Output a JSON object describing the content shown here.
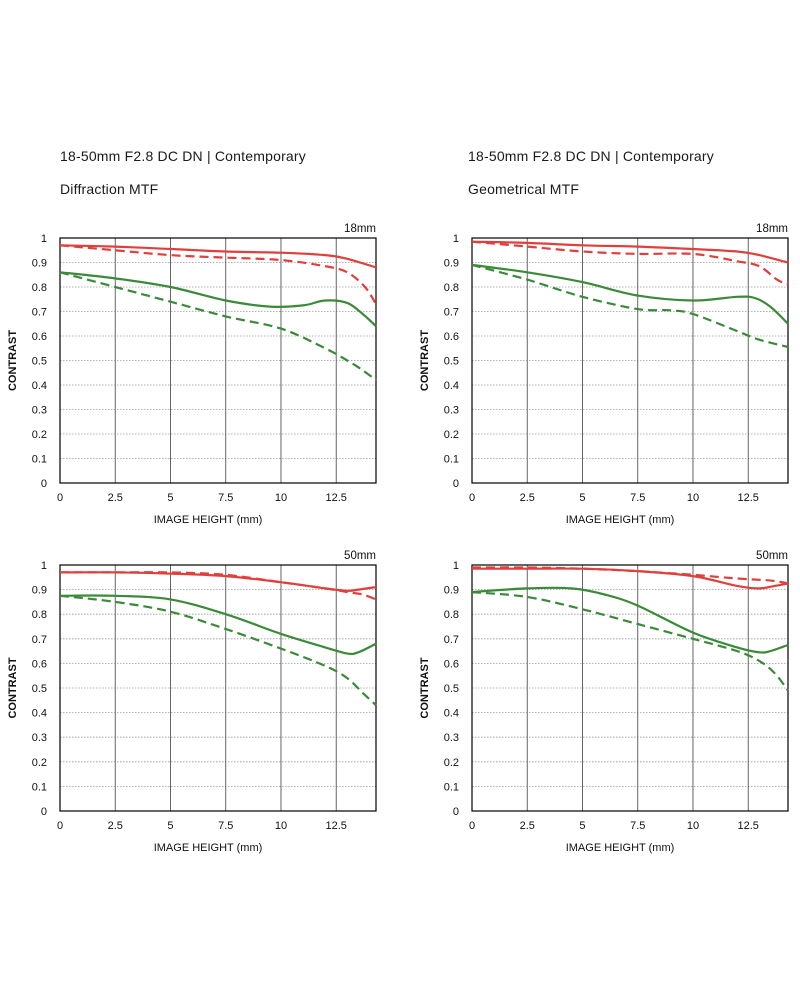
{
  "left_header": {
    "title": "18-50mm F2.8 DC DN | Contemporary",
    "subtitle": "Diffraction MTF"
  },
  "right_header": {
    "title": "18-50mm F2.8 DC DN | Contemporary",
    "subtitle": "Geometrical MTF"
  },
  "colors": {
    "red": "#e0403c",
    "green": "#3a8a3a",
    "grid": "#9a9a9a",
    "axis": "#000000"
  },
  "chart_data": [
    {
      "type": "line",
      "focal_label": "18mm",
      "xlabel": "IMAGE HEIGHT (mm)",
      "ylabel": "CONTRAST",
      "xlim": [
        0,
        14.3
      ],
      "ylim": [
        0,
        1
      ],
      "xticks": [
        "0",
        "2.5",
        "5",
        "7.5",
        "10",
        "12.5"
      ],
      "yticks": [
        "0",
        "0.1",
        "0.2",
        "0.3",
        "0.4",
        "0.5",
        "0.6",
        "0.7",
        "0.8",
        "0.9",
        "1"
      ],
      "series": [
        {
          "color": "red",
          "dash": false,
          "points": [
            [
              0,
              0.97
            ],
            [
              2.5,
              0.965
            ],
            [
              5,
              0.955
            ],
            [
              7.5,
              0.945
            ],
            [
              10,
              0.94
            ],
            [
              12,
              0.93
            ],
            [
              13,
              0.915
            ],
            [
              14.3,
              0.88
            ]
          ]
        },
        {
          "color": "red",
          "dash": true,
          "points": [
            [
              0,
              0.97
            ],
            [
              2.5,
              0.95
            ],
            [
              5,
              0.93
            ],
            [
              7.5,
              0.92
            ],
            [
              10,
              0.91
            ],
            [
              12,
              0.885
            ],
            [
              13,
              0.86
            ],
            [
              13.8,
              0.8
            ],
            [
              14.3,
              0.73
            ]
          ]
        },
        {
          "color": "green",
          "dash": false,
          "points": [
            [
              0,
              0.86
            ],
            [
              2.5,
              0.835
            ],
            [
              5,
              0.8
            ],
            [
              7.5,
              0.745
            ],
            [
              9.5,
              0.72
            ],
            [
              11,
              0.725
            ],
            [
              12,
              0.745
            ],
            [
              13,
              0.735
            ],
            [
              13.7,
              0.69
            ],
            [
              14.3,
              0.64
            ]
          ]
        },
        {
          "color": "green",
          "dash": true,
          "points": [
            [
              0,
              0.86
            ],
            [
              2.5,
              0.8
            ],
            [
              5,
              0.74
            ],
            [
              7.5,
              0.68
            ],
            [
              10,
              0.63
            ],
            [
              12,
              0.55
            ],
            [
              13,
              0.5
            ],
            [
              13.7,
              0.46
            ],
            [
              14.3,
              0.42
            ]
          ]
        }
      ]
    },
    {
      "type": "line",
      "focal_label": "18mm",
      "xlabel": "IMAGE HEIGHT (mm)",
      "ylabel": "CONTRAST",
      "xlim": [
        0,
        14.3
      ],
      "ylim": [
        0,
        1
      ],
      "xticks": [
        "0",
        "2.5",
        "5",
        "7.5",
        "10",
        "12.5"
      ],
      "yticks": [
        "0",
        "0.1",
        "0.2",
        "0.3",
        "0.4",
        "0.5",
        "0.6",
        "0.7",
        "0.8",
        "0.9",
        "1"
      ],
      "series": [
        {
          "color": "red",
          "dash": false,
          "points": [
            [
              0,
              0.985
            ],
            [
              2.5,
              0.98
            ],
            [
              5,
              0.97
            ],
            [
              7.5,
              0.965
            ],
            [
              10,
              0.955
            ],
            [
              12,
              0.945
            ],
            [
              13,
              0.93
            ],
            [
              14.3,
              0.9
            ]
          ]
        },
        {
          "color": "red",
          "dash": true,
          "points": [
            [
              0,
              0.985
            ],
            [
              2.5,
              0.965
            ],
            [
              5,
              0.945
            ],
            [
              7.5,
              0.935
            ],
            [
              10,
              0.935
            ],
            [
              12,
              0.905
            ],
            [
              13,
              0.885
            ],
            [
              13.8,
              0.83
            ],
            [
              14.3,
              0.81
            ]
          ]
        },
        {
          "color": "green",
          "dash": false,
          "points": [
            [
              0,
              0.89
            ],
            [
              2.5,
              0.86
            ],
            [
              5,
              0.82
            ],
            [
              7.5,
              0.765
            ],
            [
              10,
              0.745
            ],
            [
              12,
              0.76
            ],
            [
              12.8,
              0.755
            ],
            [
              13.5,
              0.72
            ],
            [
              14.3,
              0.65
            ]
          ]
        },
        {
          "color": "green",
          "dash": true,
          "points": [
            [
              0,
              0.89
            ],
            [
              2.5,
              0.83
            ],
            [
              5,
              0.76
            ],
            [
              7.5,
              0.71
            ],
            [
              9,
              0.705
            ],
            [
              10,
              0.69
            ],
            [
              12,
              0.62
            ],
            [
              13,
              0.585
            ],
            [
              14.3,
              0.555
            ]
          ]
        }
      ]
    },
    {
      "type": "line",
      "focal_label": "50mm",
      "xlabel": "IMAGE HEIGHT (mm)",
      "ylabel": "CONTRAST",
      "xlim": [
        0,
        14.3
      ],
      "ylim": [
        0,
        1
      ],
      "xticks": [
        "0",
        "2.5",
        "5",
        "7.5",
        "10",
        "12.5"
      ],
      "yticks": [
        "0",
        "0.1",
        "0.2",
        "0.3",
        "0.4",
        "0.5",
        "0.6",
        "0.7",
        "0.8",
        "0.9",
        "1"
      ],
      "series": [
        {
          "color": "red",
          "dash": false,
          "points": [
            [
              0,
              0.97
            ],
            [
              2.5,
              0.97
            ],
            [
              5,
              0.965
            ],
            [
              7.5,
              0.955
            ],
            [
              10,
              0.93
            ],
            [
              12,
              0.905
            ],
            [
              13,
              0.895
            ],
            [
              13.5,
              0.9
            ],
            [
              14.3,
              0.91
            ]
          ]
        },
        {
          "color": "red",
          "dash": true,
          "points": [
            [
              0,
              0.97
            ],
            [
              2.5,
              0.97
            ],
            [
              5,
              0.97
            ],
            [
              7.5,
              0.96
            ],
            [
              10,
              0.93
            ],
            [
              12,
              0.905
            ],
            [
              13,
              0.89
            ],
            [
              13.7,
              0.88
            ],
            [
              14.3,
              0.86
            ]
          ]
        },
        {
          "color": "green",
          "dash": false,
          "points": [
            [
              0,
              0.875
            ],
            [
              2.5,
              0.875
            ],
            [
              5,
              0.86
            ],
            [
              7.5,
              0.8
            ],
            [
              10,
              0.72
            ],
            [
              12,
              0.665
            ],
            [
              13,
              0.64
            ],
            [
              13.5,
              0.645
            ],
            [
              14.3,
              0.68
            ]
          ]
        },
        {
          "color": "green",
          "dash": true,
          "points": [
            [
              0,
              0.875
            ],
            [
              2.5,
              0.85
            ],
            [
              5,
              0.81
            ],
            [
              7.5,
              0.74
            ],
            [
              10,
              0.66
            ],
            [
              12,
              0.59
            ],
            [
              13,
              0.54
            ],
            [
              13.7,
              0.48
            ],
            [
              14.3,
              0.43
            ]
          ]
        }
      ]
    },
    {
      "type": "line",
      "focal_label": "50mm",
      "xlabel": "IMAGE HEIGHT (mm)",
      "ylabel": "CONTRAST",
      "xlim": [
        0,
        14.3
      ],
      "ylim": [
        0,
        1
      ],
      "xticks": [
        "0",
        "2.5",
        "5",
        "7.5",
        "10",
        "12.5"
      ],
      "yticks": [
        "0",
        "0.1",
        "0.2",
        "0.3",
        "0.4",
        "0.5",
        "0.6",
        "0.7",
        "0.8",
        "0.9",
        "1"
      ],
      "series": [
        {
          "color": "red",
          "dash": false,
          "points": [
            [
              0,
              0.985
            ],
            [
              2.5,
              0.985
            ],
            [
              5,
              0.985
            ],
            [
              7.5,
              0.975
            ],
            [
              10,
              0.955
            ],
            [
              12,
              0.915
            ],
            [
              13,
              0.905
            ],
            [
              13.7,
              0.915
            ],
            [
              14.3,
              0.925
            ]
          ]
        },
        {
          "color": "red",
          "dash": true,
          "points": [
            [
              0,
              0.99
            ],
            [
              2.5,
              0.99
            ],
            [
              5,
              0.985
            ],
            [
              7.5,
              0.975
            ],
            [
              10,
              0.96
            ],
            [
              12,
              0.945
            ],
            [
              13,
              0.94
            ],
            [
              13.7,
              0.935
            ],
            [
              14.3,
              0.925
            ]
          ]
        },
        {
          "color": "green",
          "dash": false,
          "points": [
            [
              0,
              0.89
            ],
            [
              2.5,
              0.905
            ],
            [
              4.5,
              0.905
            ],
            [
              6,
              0.88
            ],
            [
              7.5,
              0.835
            ],
            [
              10,
              0.725
            ],
            [
              12,
              0.665
            ],
            [
              13,
              0.645
            ],
            [
              13.5,
              0.65
            ],
            [
              14.3,
              0.675
            ]
          ]
        },
        {
          "color": "green",
          "dash": true,
          "points": [
            [
              0,
              0.89
            ],
            [
              2.5,
              0.87
            ],
            [
              5,
              0.82
            ],
            [
              7.5,
              0.76
            ],
            [
              10,
              0.7
            ],
            [
              12,
              0.65
            ],
            [
              13,
              0.61
            ],
            [
              13.7,
              0.56
            ],
            [
              14.3,
              0.49
            ]
          ]
        }
      ]
    }
  ]
}
